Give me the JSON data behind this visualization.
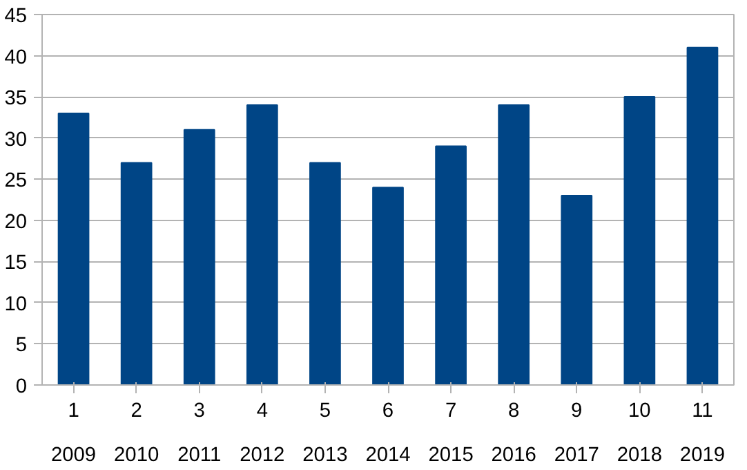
{
  "chart_data": {
    "type": "bar",
    "categories": [
      "1\n2009",
      "2\n2010",
      "3\n2011",
      "4\n2012",
      "5\n2013",
      "6\n2014",
      "7\n2015",
      "8\n2016",
      "9\n2017",
      "10\n2018",
      "11\n2019"
    ],
    "values": [
      33,
      27,
      31,
      34,
      27,
      24,
      29,
      34,
      23,
      35,
      41
    ],
    "color": "#004586",
    "ylim": [
      0,
      45
    ],
    "yticks": [
      0,
      5,
      10,
      15,
      20,
      25,
      30,
      35,
      40,
      45
    ],
    "grid": "y"
  }
}
